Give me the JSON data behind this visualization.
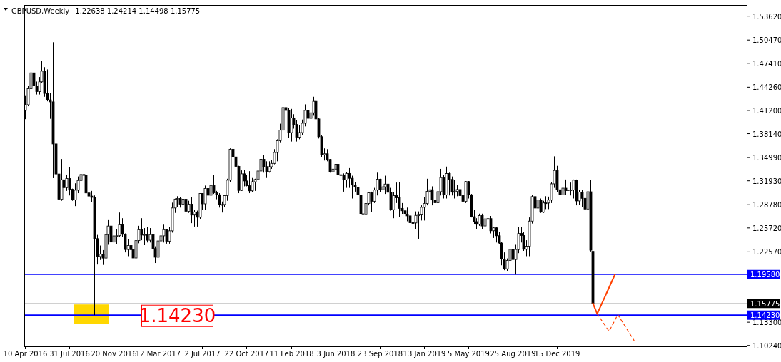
{
  "chart_data": {
    "type": "candlestick",
    "title": "GBPUSD,Weekly",
    "subtitle": "1.22638 1.24214 1.14498 1.15775",
    "x": [
      "2016-04-10",
      "2016-04-17",
      "2016-04-24",
      "2016-05-01",
      "2016-05-08",
      "2016-05-15",
      "2016-05-22",
      "2016-05-29",
      "2016-06-05",
      "2016-06-12",
      "2016-06-19",
      "2016-06-26",
      "2016-07-03",
      "2016-07-10",
      "2016-07-17",
      "2016-07-24",
      "2016-07-31",
      "2016-08-07",
      "2016-08-14",
      "2016-08-21",
      "2016-08-28",
      "2016-09-04",
      "2016-09-11",
      "2016-09-18",
      "2016-09-25",
      "2016-10-02",
      "2016-10-09",
      "2016-10-16",
      "2016-10-23",
      "2016-10-30",
      "2016-11-06",
      "2016-11-13",
      "2016-11-20",
      "2016-11-27",
      "2016-12-04",
      "2016-12-11",
      "2016-12-18",
      "2016-12-25",
      "2017-01-01",
      "2017-01-08",
      "2017-01-15",
      "2017-01-22",
      "2017-01-29",
      "2017-02-05",
      "2017-02-12",
      "2017-02-19",
      "2017-02-26",
      "2017-03-05",
      "2017-03-12",
      "2017-03-19",
      "2017-03-26",
      "2017-04-02",
      "2017-04-09",
      "2017-04-16",
      "2017-04-23",
      "2017-04-30",
      "2017-05-07",
      "2017-05-14",
      "2017-05-21",
      "2017-05-28",
      "2017-06-04",
      "2017-06-11",
      "2017-06-18",
      "2017-06-25",
      "2017-07-02",
      "2017-07-09",
      "2017-07-16",
      "2017-07-23",
      "2017-07-30",
      "2017-08-06",
      "2017-08-13",
      "2017-08-20",
      "2017-08-27",
      "2017-09-03",
      "2017-09-10",
      "2017-09-17",
      "2017-09-24",
      "2017-10-01",
      "2017-10-08",
      "2017-10-15",
      "2017-10-22",
      "2017-10-29",
      "2017-11-05",
      "2017-11-12",
      "2017-11-19",
      "2017-11-26",
      "2017-12-03",
      "2017-12-10",
      "2017-12-17",
      "2017-12-24",
      "2017-12-31",
      "2018-01-07",
      "2018-01-14",
      "2018-01-21",
      "2018-01-28",
      "2018-02-04",
      "2018-02-11",
      "2018-02-18",
      "2018-02-25",
      "2018-03-04",
      "2018-03-11",
      "2018-03-18",
      "2018-03-25",
      "2018-04-01",
      "2018-04-08",
      "2018-04-15",
      "2018-04-22",
      "2018-04-29",
      "2018-05-06",
      "2018-05-13",
      "2018-05-20",
      "2018-05-27",
      "2018-06-03",
      "2018-06-10",
      "2018-06-17",
      "2018-06-24",
      "2018-07-01",
      "2018-07-08",
      "2018-07-15",
      "2018-07-22",
      "2018-07-29",
      "2018-08-05",
      "2018-08-12",
      "2018-08-19",
      "2018-08-26",
      "2018-09-02",
      "2018-09-09",
      "2018-09-16",
      "2018-09-23",
      "2018-09-30",
      "2018-10-07",
      "2018-10-14",
      "2018-10-21",
      "2018-10-28",
      "2018-11-04",
      "2018-11-11",
      "2018-11-18",
      "2018-11-25",
      "2018-12-02",
      "2018-12-09",
      "2018-12-16",
      "2018-12-23",
      "2018-12-30",
      "2019-01-06",
      "2019-01-13",
      "2019-01-20",
      "2019-01-27",
      "2019-02-03",
      "2019-02-10",
      "2019-02-17",
      "2019-02-24",
      "2019-03-03",
      "2019-03-10",
      "2019-03-17",
      "2019-03-24",
      "2019-03-31",
      "2019-04-07",
      "2019-04-14",
      "2019-04-21",
      "2019-04-28",
      "2019-05-05",
      "2019-05-12",
      "2019-05-19",
      "2019-05-26",
      "2019-06-02",
      "2019-06-09",
      "2019-06-16",
      "2019-06-23",
      "2019-06-30",
      "2019-07-07",
      "2019-07-14",
      "2019-07-21",
      "2019-07-28",
      "2019-08-04",
      "2019-08-11",
      "2019-08-18",
      "2019-08-25",
      "2019-09-01",
      "2019-09-08",
      "2019-09-15",
      "2019-09-22",
      "2019-09-29",
      "2019-10-06",
      "2019-10-13",
      "2019-10-20",
      "2019-10-27",
      "2019-11-03",
      "2019-11-10",
      "2019-11-17",
      "2019-11-24",
      "2019-12-01",
      "2019-12-08",
      "2019-12-15",
      "2019-12-22",
      "2019-12-29",
      "2020-01-05",
      "2020-01-12",
      "2020-01-19",
      "2020-01-26",
      "2020-02-02",
      "2020-02-09",
      "2020-02-16",
      "2020-02-23",
      "2020-03-01",
      "2020-03-08",
      "2020-03-15"
    ],
    "ohlc": [
      [
        1.412,
        1.431,
        1.4005,
        1.4195
      ],
      [
        1.4195,
        1.444,
        1.4175,
        1.4405
      ],
      [
        1.4405,
        1.464,
        1.4325,
        1.4615
      ],
      [
        1.4615,
        1.477,
        1.442,
        1.4444
      ],
      [
        1.4444,
        1.45,
        1.433,
        1.4369
      ],
      [
        1.4369,
        1.456,
        1.433,
        1.4497
      ],
      [
        1.4497,
        1.477,
        1.448,
        1.4637
      ],
      [
        1.4637,
        1.469,
        1.43,
        1.4344
      ],
      [
        1.4344,
        1.466,
        1.424,
        1.4259
      ],
      [
        1.4259,
        1.435,
        1.401,
        1.4233
      ],
      [
        1.4233,
        1.5018,
        1.3228,
        1.3679
      ],
      [
        1.3679,
        1.369,
        1.312,
        1.3283
      ],
      [
        1.3283,
        1.333,
        1.2798,
        1.295
      ],
      [
        1.295,
        1.348,
        1.293,
        1.3206
      ],
      [
        1.3206,
        1.337,
        1.306,
        1.3103
      ],
      [
        1.3103,
        1.3275,
        1.306,
        1.3223
      ],
      [
        1.3223,
        1.337,
        1.3,
        1.3081
      ],
      [
        1.3081,
        1.309,
        1.293,
        1.294
      ],
      [
        1.294,
        1.316,
        1.286,
        1.3069
      ],
      [
        1.3069,
        1.325,
        1.303,
        1.3197
      ],
      [
        1.3197,
        1.335,
        1.306,
        1.3276
      ],
      [
        1.3276,
        1.344,
        1.324,
        1.3265
      ],
      [
        1.3265,
        1.33,
        1.3,
        1.3033
      ],
      [
        1.3033,
        1.309,
        1.292,
        1.2992
      ],
      [
        1.2992,
        1.306,
        1.291,
        1.2975
      ],
      [
        1.2975,
        1.3,
        1.1423,
        1.2431
      ],
      [
        1.2431,
        1.248,
        1.209,
        1.2196
      ],
      [
        1.2196,
        1.234,
        1.215,
        1.2226
      ],
      [
        1.2226,
        1.228,
        1.2085,
        1.2175
      ],
      [
        1.2175,
        1.253,
        1.216,
        1.2484
      ],
      [
        1.2484,
        1.2675,
        1.235,
        1.2597
      ],
      [
        1.2597,
        1.26,
        1.23,
        1.2386
      ],
      [
        1.2386,
        1.25,
        1.23,
        1.2467
      ],
      [
        1.2467,
        1.256,
        1.236,
        1.247
      ],
      [
        1.247,
        1.2775,
        1.245,
        1.2614
      ],
      [
        1.2614,
        1.27,
        1.245,
        1.2488
      ],
      [
        1.2488,
        1.25,
        1.225,
        1.2288
      ],
      [
        1.2288,
        1.242,
        1.22,
        1.234
      ],
      [
        1.234,
        1.243,
        1.22,
        1.2286
      ],
      [
        1.2286,
        1.23,
        1.204,
        1.2176
      ],
      [
        1.2176,
        1.242,
        1.1986,
        1.2405
      ],
      [
        1.2405,
        1.26,
        1.237,
        1.2548
      ],
      [
        1.2548,
        1.27,
        1.241,
        1.2478
      ],
      [
        1.2478,
        1.257,
        1.2345,
        1.2485
      ],
      [
        1.2485,
        1.258,
        1.238,
        1.241
      ],
      [
        1.241,
        1.257,
        1.238,
        1.2484
      ],
      [
        1.2484,
        1.251,
        1.225,
        1.23
      ],
      [
        1.23,
        1.233,
        1.211,
        1.2186
      ],
      [
        1.2186,
        1.243,
        1.211,
        1.2401
      ],
      [
        1.2401,
        1.25,
        1.234,
        1.2468
      ],
      [
        1.2468,
        1.2615,
        1.238,
        1.2549
      ],
      [
        1.2549,
        1.256,
        1.2365,
        1.2398
      ],
      [
        1.2398,
        1.258,
        1.2365,
        1.2534
      ],
      [
        1.2534,
        1.2905,
        1.251,
        1.2835
      ],
      [
        1.2835,
        1.296,
        1.277,
        1.2952
      ],
      [
        1.2952,
        1.299,
        1.2845,
        1.296
      ],
      [
        1.296,
        1.298,
        1.284,
        1.2885
      ],
      [
        1.2885,
        1.305,
        1.286,
        1.295
      ],
      [
        1.295,
        1.3,
        1.277,
        1.2792
      ],
      [
        1.2792,
        1.293,
        1.277,
        1.2886
      ],
      [
        1.2886,
        1.298,
        1.2635,
        1.2742
      ],
      [
        1.2742,
        1.281,
        1.259,
        1.2783
      ],
      [
        1.2783,
        1.28,
        1.259,
        1.2713
      ],
      [
        1.2713,
        1.303,
        1.269,
        1.3025
      ],
      [
        1.3025,
        1.303,
        1.281,
        1.289
      ],
      [
        1.289,
        1.313,
        1.281,
        1.3092
      ],
      [
        1.3092,
        1.3125,
        1.293,
        1.3003
      ],
      [
        1.3003,
        1.317,
        1.299,
        1.3132
      ],
      [
        1.3132,
        1.327,
        1.302,
        1.3035
      ],
      [
        1.3035,
        1.306,
        1.295,
        1.3009
      ],
      [
        1.3009,
        1.303,
        1.284,
        1.2877
      ],
      [
        1.2877,
        1.292,
        1.2775,
        1.2881
      ],
      [
        1.2881,
        1.3,
        1.2845,
        1.2997
      ],
      [
        1.2997,
        1.322,
        1.293,
        1.3201
      ],
      [
        1.3201,
        1.362,
        1.3175,
        1.3609
      ],
      [
        1.3609,
        1.3655,
        1.345,
        1.3507
      ],
      [
        1.3507,
        1.355,
        1.334,
        1.3382
      ],
      [
        1.3382,
        1.339,
        1.303,
        1.3066
      ],
      [
        1.3066,
        1.333,
        1.306,
        1.3285
      ],
      [
        1.3285,
        1.334,
        1.312,
        1.3191
      ],
      [
        1.3191,
        1.327,
        1.312,
        1.3128
      ],
      [
        1.3128,
        1.332,
        1.303,
        1.3061
      ],
      [
        1.3061,
        1.323,
        1.304,
        1.318
      ],
      [
        1.318,
        1.322,
        1.306,
        1.321
      ],
      [
        1.321,
        1.3365,
        1.32,
        1.3322
      ],
      [
        1.3322,
        1.355,
        1.33,
        1.3477
      ],
      [
        1.3477,
        1.353,
        1.33,
        1.338
      ],
      [
        1.338,
        1.345,
        1.323,
        1.3314
      ],
      [
        1.3314,
        1.345,
        1.33,
        1.3378
      ],
      [
        1.3378,
        1.347,
        1.335,
        1.3422
      ],
      [
        1.3422,
        1.361,
        1.341,
        1.3566
      ],
      [
        1.3566,
        1.374,
        1.345,
        1.372
      ],
      [
        1.372,
        1.3945,
        1.37,
        1.386
      ],
      [
        1.386,
        1.4346,
        1.384,
        1.4158
      ],
      [
        1.4158,
        1.424,
        1.406,
        1.412
      ],
      [
        1.412,
        1.415,
        1.376,
        1.3827
      ],
      [
        1.3827,
        1.414,
        1.371,
        1.4022
      ],
      [
        1.4022,
        1.407,
        1.388,
        1.3935
      ],
      [
        1.3935,
        1.399,
        1.371,
        1.3768
      ],
      [
        1.3768,
        1.393,
        1.374,
        1.3828
      ],
      [
        1.3828,
        1.4,
        1.38,
        1.3951
      ],
      [
        1.3951,
        1.42,
        1.391,
        1.412
      ],
      [
        1.412,
        1.4245,
        1.399,
        1.4016
      ],
      [
        1.4016,
        1.411,
        1.396,
        1.4089
      ],
      [
        1.4089,
        1.43,
        1.405,
        1.424
      ],
      [
        1.424,
        1.4377,
        1.4,
        1.4008
      ],
      [
        1.4008,
        1.402,
        1.375,
        1.3774
      ],
      [
        1.3774,
        1.38,
        1.35,
        1.3536
      ],
      [
        1.3536,
        1.362,
        1.346,
        1.3549
      ],
      [
        1.3549,
        1.361,
        1.345,
        1.3474
      ],
      [
        1.3474,
        1.348,
        1.33,
        1.3311
      ],
      [
        1.3311,
        1.338,
        1.32,
        1.3347
      ],
      [
        1.3347,
        1.347,
        1.33,
        1.3411
      ],
      [
        1.3411,
        1.347,
        1.32,
        1.3273
      ],
      [
        1.3273,
        1.331,
        1.31,
        1.3265
      ],
      [
        1.3265,
        1.329,
        1.305,
        1.3205
      ],
      [
        1.3205,
        1.331,
        1.31,
        1.329
      ],
      [
        1.329,
        1.336,
        1.31,
        1.3226
      ],
      [
        1.3226,
        1.326,
        1.296,
        1.3137
      ],
      [
        1.3137,
        1.318,
        1.305,
        1.3111
      ],
      [
        1.3111,
        1.317,
        1.295,
        1.3007
      ],
      [
        1.3007,
        1.303,
        1.275,
        1.2758
      ],
      [
        1.2758,
        1.28,
        1.266,
        1.2747
      ],
      [
        1.2747,
        1.299,
        1.273,
        1.2895
      ],
      [
        1.2895,
        1.3045,
        1.287,
        1.3035
      ],
      [
        1.3035,
        1.305,
        1.2785,
        1.2924
      ],
      [
        1.2924,
        1.31,
        1.29,
        1.3071
      ],
      [
        1.3071,
        1.33,
        1.3,
        1.3213
      ],
      [
        1.3213,
        1.322,
        1.304,
        1.3075
      ],
      [
        1.3075,
        1.317,
        1.292,
        1.3114
      ],
      [
        1.3114,
        1.326,
        1.302,
        1.315
      ],
      [
        1.315,
        1.326,
        1.3,
        1.3042
      ],
      [
        1.3042,
        1.31,
        1.28,
        1.2812
      ],
      [
        1.2812,
        1.304,
        1.27,
        1.2997
      ],
      [
        1.2997,
        1.317,
        1.29,
        1.2969
      ],
      [
        1.2969,
        1.3175,
        1.272,
        1.283
      ],
      [
        1.283,
        1.29,
        1.275,
        1.2798
      ],
      [
        1.2798,
        1.29,
        1.272,
        1.2754
      ],
      [
        1.2754,
        1.284,
        1.266,
        1.2731
      ],
      [
        1.2731,
        1.284,
        1.2475,
        1.264
      ],
      [
        1.264,
        1.273,
        1.258,
        1.2638
      ],
      [
        1.2638,
        1.279,
        1.256,
        1.2737
      ],
      [
        1.2737,
        1.279,
        1.243,
        1.2743
      ],
      [
        1.2743,
        1.287,
        1.267,
        1.2844
      ],
      [
        1.2844,
        1.298,
        1.267,
        1.2893
      ],
      [
        1.2893,
        1.322,
        1.287,
        1.3054
      ],
      [
        1.3054,
        1.3215,
        1.3,
        1.3075
      ],
      [
        1.3075,
        1.312,
        1.287,
        1.294
      ],
      [
        1.294,
        1.296,
        1.277,
        1.2904
      ],
      [
        1.2904,
        1.311,
        1.285,
        1.305
      ],
      [
        1.305,
        1.335,
        1.3,
        1.3235
      ],
      [
        1.3235,
        1.327,
        1.296,
        1.3007
      ],
      [
        1.3007,
        1.338,
        1.296,
        1.3289
      ],
      [
        1.3289,
        1.33,
        1.3,
        1.3211
      ],
      [
        1.3211,
        1.325,
        1.3,
        1.3043
      ],
      [
        1.3043,
        1.32,
        1.296,
        1.3052
      ],
      [
        1.3052,
        1.314,
        1.299,
        1.3078
      ],
      [
        1.3078,
        1.313,
        1.299,
        1.2998
      ],
      [
        1.2998,
        1.303,
        1.287,
        1.2922
      ],
      [
        1.2922,
        1.319,
        1.29,
        1.3183
      ],
      [
        1.3183,
        1.319,
        1.296,
        1.3009
      ],
      [
        1.3009,
        1.302,
        1.271,
        1.272
      ],
      [
        1.272,
        1.281,
        1.262,
        1.2655
      ],
      [
        1.2655,
        1.27,
        1.256,
        1.262
      ],
      [
        1.262,
        1.276,
        1.26,
        1.2735
      ],
      [
        1.2735,
        1.276,
        1.256,
        1.2598
      ],
      [
        1.2598,
        1.277,
        1.251,
        1.2691
      ],
      [
        1.2691,
        1.278,
        1.265,
        1.2695
      ],
      [
        1.2695,
        1.273,
        1.25,
        1.2535
      ],
      [
        1.2535,
        1.258,
        1.244,
        1.2573
      ],
      [
        1.2573,
        1.258,
        1.238,
        1.2469
      ],
      [
        1.2469,
        1.252,
        1.236,
        1.2373
      ],
      [
        1.2373,
        1.239,
        1.208,
        1.2161
      ],
      [
        1.2161,
        1.225,
        1.2015,
        1.2033
      ],
      [
        1.2033,
        1.217,
        1.2,
        1.2144
      ],
      [
        1.2144,
        1.229,
        1.205,
        1.229
      ],
      [
        1.229,
        1.231,
        1.21,
        1.2156
      ],
      [
        1.2156,
        1.235,
        1.1958,
        1.2288
      ],
      [
        1.2288,
        1.258,
        1.224,
        1.2499
      ],
      [
        1.2499,
        1.258,
        1.238,
        1.2473
      ],
      [
        1.2473,
        1.252,
        1.227,
        1.2291
      ],
      [
        1.2291,
        1.241,
        1.22,
        1.2332
      ],
      [
        1.2332,
        1.271,
        1.22,
        1.2662
      ],
      [
        1.2662,
        1.301,
        1.263,
        1.2985
      ],
      [
        1.2985,
        1.301,
        1.282,
        1.2834
      ],
      [
        1.2834,
        1.299,
        1.283,
        1.294
      ],
      [
        1.294,
        1.296,
        1.277,
        1.278
      ],
      [
        1.278,
        1.293,
        1.277,
        1.2902
      ],
      [
        1.2902,
        1.299,
        1.282,
        1.2901
      ],
      [
        1.2901,
        1.2985,
        1.282,
        1.2939
      ],
      [
        1.2939,
        1.318,
        1.29,
        1.3153
      ],
      [
        1.3153,
        1.3515,
        1.31,
        1.3329
      ],
      [
        1.3329,
        1.339,
        1.304,
        1.3075
      ],
      [
        1.3075,
        1.308,
        1.29,
        1.3007
      ],
      [
        1.3007,
        1.3285,
        1.299,
        1.3096
      ],
      [
        1.3096,
        1.321,
        1.301,
        1.3063
      ],
      [
        1.3063,
        1.312,
        1.295,
        1.3072
      ],
      [
        1.3072,
        1.317,
        1.3,
        1.3073
      ],
      [
        1.3073,
        1.321,
        1.296,
        1.3201
      ],
      [
        1.3201,
        1.321,
        1.287,
        1.2928
      ],
      [
        1.2928,
        1.307,
        1.288,
        1.3044
      ],
      [
        1.3044,
        1.307,
        1.285,
        1.2962
      ],
      [
        1.2962,
        1.3,
        1.2725,
        1.2821
      ],
      [
        1.2821,
        1.32,
        1.278,
        1.3049
      ],
      [
        1.3049,
        1.32,
        1.2262,
        1.2279
      ],
      [
        1.22638,
        1.24214,
        1.14498,
        1.15775
      ]
    ],
    "series": [
      {
        "type": "line",
        "color": "#ff4000",
        "line_style": "solid",
        "x": [
          "2020-03-15",
          "2020-03-26",
          "2020-05-10"
        ],
        "values": [
          1.158,
          1.144,
          1.196
        ]
      },
      {
        "type": "line",
        "color": "#ff4000",
        "line_style": "dashed",
        "x": [
          "2020-03-26",
          "2020-04-25",
          "2020-05-17",
          "2020-06-27"
        ],
        "values": [
          1.144,
          1.121,
          1.143,
          1.109
        ]
      }
    ],
    "xlim": [
      "2016-04-08",
      "2021-04-08"
    ],
    "xticks": [
      {
        "value": "2016-04-10",
        "label": "10 Apr 2016"
      },
      {
        "value": "2016-07-31",
        "label": "31 Jul 2016"
      },
      {
        "value": "2016-11-20",
        "label": "20 Nov 2016"
      },
      {
        "value": "2017-03-12",
        "label": "12 Mar 2017"
      },
      {
        "value": "2017-07-02",
        "label": "2 Jul 2017"
      },
      {
        "value": "2017-10-22",
        "label": "22 Oct 2017"
      },
      {
        "value": "2018-02-11",
        "label": "11 Feb 2018"
      },
      {
        "value": "2018-06-03",
        "label": "3 Jun 2018"
      },
      {
        "value": "2018-09-23",
        "label": "23 Sep 2018"
      },
      {
        "value": "2019-01-13",
        "label": "13 Jan 2019"
      },
      {
        "value": "2019-05-05",
        "label": "5 May 2019"
      },
      {
        "value": "2019-08-25",
        "label": "25 Aug 2019"
      },
      {
        "value": "2019-12-15",
        "label": "15 Dec 2019"
      }
    ],
    "ylim": [
      1.1012,
      1.5509
    ],
    "yticks": [
      {
        "value": 1.5362,
        "label": "1.53620"
      },
      {
        "value": 1.5047,
        "label": "1.50470"
      },
      {
        "value": 1.4741,
        "label": "1.47410"
      },
      {
        "value": 1.4426,
        "label": "1.44260"
      },
      {
        "value": 1.412,
        "label": "1.41200"
      },
      {
        "value": 1.3814,
        "label": "1.38140"
      },
      {
        "value": 1.3499,
        "label": "1.34990"
      },
      {
        "value": 1.3193,
        "label": "1.31930"
      },
      {
        "value": 1.2878,
        "label": "1.28780"
      },
      {
        "value": 1.2572,
        "label": "1.25720"
      },
      {
        "value": 1.2257,
        "label": "1.22570"
      },
      {
        "value": 1.1636,
        "label": null
      },
      {
        "value": 1.133,
        "label": "1.13300"
      },
      {
        "value": 1.1024,
        "label": "1.10240"
      }
    ],
    "ref_lines": [
      {
        "axis": "y",
        "value": 1.1958,
        "label": "1.19580",
        "color": "#0000ff"
      },
      {
        "axis": "y",
        "value": 1.15775,
        "label": "1.15775",
        "color": "#c0c0c0"
      },
      {
        "axis": "y",
        "value": 1.1423,
        "label": "1.14230",
        "color": "#0000ff"
      }
    ],
    "annotations": [
      {
        "text": "1.14230",
        "x": "2017-04-30",
        "y": 1.1423
      }
    ],
    "grid": false
  }
}
